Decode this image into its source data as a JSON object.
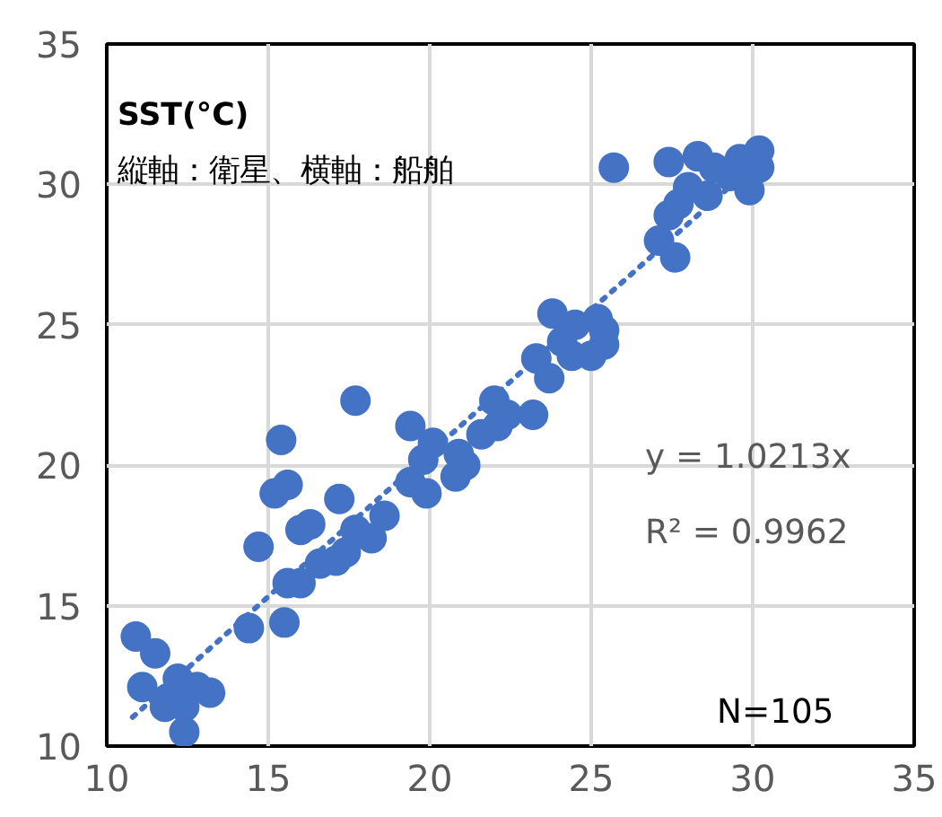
{
  "chart_data": {
    "type": "scatter",
    "title": "SST(°C)",
    "subtitle": "縦軸：衛星、横軸：船舶",
    "xlim": [
      10,
      35
    ],
    "ylim": [
      10,
      35
    ],
    "xticks": [
      10,
      15,
      20,
      25,
      30,
      35
    ],
    "yticks": [
      10,
      15,
      20,
      25,
      30,
      35
    ],
    "grid": true,
    "marker": "circle",
    "annotations": [
      "y = 1.0213x",
      "R² = 0.9962",
      "N=105"
    ],
    "series": [
      {
        "color": "#4472c4",
        "x": [
          10.9,
          11.5,
          11.1,
          12.2,
          12.8,
          13.2,
          11.8,
          12.4,
          12.4,
          11.9,
          14.4,
          15.5,
          14.7,
          15.6,
          16.0,
          16.6,
          17.1,
          16.0,
          16.3,
          17.2,
          15.2,
          15.6,
          15.4,
          17.7,
          17.4,
          18.2,
          18.6,
          19.4,
          19.4,
          19.9,
          17.7,
          20.9,
          20.8,
          20.1,
          19.8,
          21.1,
          21.6,
          22.1,
          22.0,
          22.4,
          23.2,
          23.3,
          23.7,
          23.8,
          24.5,
          25.2,
          25.4,
          24.1,
          24.4,
          25.0,
          25.4,
          25.7,
          27.4,
          28.3,
          30.2,
          29.6,
          28.8,
          28.0,
          28.6,
          29.3,
          29.9,
          30.2,
          27.4,
          27.7,
          27.1,
          27.6
        ],
        "values": [
          13.9,
          13.3,
          12.1,
          12.4,
          12.1,
          11.9,
          11.4,
          11.4,
          10.5,
          11.7,
          14.2,
          14.4,
          17.1,
          15.8,
          15.8,
          16.5,
          16.6,
          17.7,
          17.9,
          18.8,
          19.0,
          19.3,
          20.9,
          17.7,
          16.9,
          17.4,
          18.2,
          21.4,
          19.4,
          19.0,
          22.3,
          20.4,
          19.6,
          20.8,
          20.2,
          20.0,
          21.1,
          21.4,
          22.3,
          21.8,
          21.8,
          23.8,
          23.1,
          25.4,
          25.0,
          25.2,
          24.3,
          24.4,
          23.9,
          23.9,
          24.8,
          30.6,
          30.8,
          31.0,
          31.2,
          30.9,
          30.6,
          29.9,
          29.6,
          30.3,
          29.8,
          30.6,
          28.9,
          29.3,
          28.0,
          27.4
        ]
      },
      {
        "color": "#4472c4",
        "type": "line",
        "marker": "none",
        "line_style": "dotted",
        "x": [
          10.8,
          30.3
        ],
        "values": [
          11.03,
          30.95
        ]
      }
    ]
  }
}
